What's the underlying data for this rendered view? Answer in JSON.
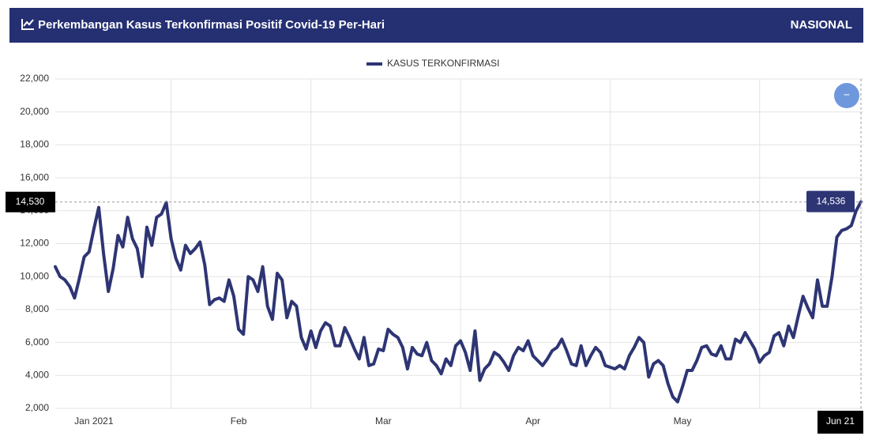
{
  "header": {
    "title": "Perkembangan Kasus Terkonfirmasi Positif Covid-19 Per-Hari",
    "badge": "NASIONAL"
  },
  "zoom_button": "−",
  "chart_data": {
    "type": "line",
    "series": [
      {
        "name": "KASUS TERKONFIRMASI",
        "color": "#2e3574",
        "values": [
          10600,
          10000,
          9800,
          9400,
          8700,
          9900,
          11200,
          11500,
          12900,
          14200,
          11400,
          9100,
          10500,
          12500,
          11800,
          13600,
          12300,
          11700,
          10000,
          13000,
          11900,
          13600,
          13800,
          14500,
          12300,
          11100,
          10400,
          11900,
          11400,
          11700,
          12100,
          10700,
          8300,
          8600,
          8700,
          8500,
          9800,
          8800,
          6800,
          6500,
          10000,
          9800,
          9100,
          10600,
          8200,
          7400,
          10200,
          9800,
          7500,
          8500,
          8200,
          6300,
          5600,
          6700,
          5700,
          6700,
          7200,
          7000,
          5800,
          5800,
          6900,
          6300,
          5600,
          5000,
          6300,
          4600,
          4700,
          5600,
          5500,
          6800,
          6500,
          6300,
          5700,
          4400,
          5700,
          5300,
          5200,
          6000,
          4900,
          4600,
          4100,
          5000,
          4600,
          5800,
          6100,
          5400,
          4300,
          6700,
          3700,
          4400,
          4700,
          5400,
          5200,
          4800,
          4300,
          5200,
          5700,
          5500,
          6100,
          5200,
          4900,
          4600,
          5000,
          5500,
          5700,
          6200,
          5500,
          4700,
          4600,
          5800,
          4600,
          5200,
          5700,
          5400,
          4600,
          4500,
          4400,
          4600,
          4400,
          5200,
          5700,
          6300,
          6000,
          3900,
          4700,
          4900,
          4600,
          3500,
          2700,
          2400,
          3300,
          4300,
          4300,
          4900,
          5700,
          5800,
          5300,
          5200,
          5800,
          5000,
          5000,
          6200,
          6000,
          6600,
          6100,
          5600,
          4800,
          5200,
          5400,
          6400,
          6600,
          5800,
          7000,
          6300,
          7600,
          8800,
          8100,
          7500,
          9800,
          8200,
          8200,
          10000,
          12400,
          12800,
          12900,
          13100,
          14000,
          14536
        ]
      }
    ],
    "xlim": [
      0,
      167
    ],
    "xticks": [
      {
        "value": 8,
        "label": "Jan 2021"
      },
      {
        "value": 38,
        "label": "Feb"
      },
      {
        "value": 68,
        "label": "Mar"
      },
      {
        "value": 99,
        "label": "Apr"
      },
      {
        "value": 130,
        "label": "May"
      }
    ],
    "xgrid_ticks": [
      24,
      53,
      84,
      115,
      146
    ],
    "ylim": [
      2000,
      22000
    ],
    "yticks": [
      {
        "value": 2000,
        "label": "2,000"
      },
      {
        "value": 4000,
        "label": "4,000"
      },
      {
        "value": 6000,
        "label": "6,000"
      },
      {
        "value": 8000,
        "label": "8,000"
      },
      {
        "value": 10000,
        "label": "10,000"
      },
      {
        "value": 12000,
        "label": "12,000"
      },
      {
        "value": 14000,
        "label": "14,000"
      },
      {
        "value": 16000,
        "label": "16,000"
      },
      {
        "value": 18000,
        "label": "18,000"
      },
      {
        "value": 20000,
        "label": "20,000"
      },
      {
        "value": 22000,
        "label": "22,000"
      }
    ],
    "grid": true,
    "cursor": {
      "value": 14530,
      "label": "14,530"
    },
    "tooltip": {
      "index": 167,
      "label": "14,536",
      "date": "Jun 21"
    }
  }
}
